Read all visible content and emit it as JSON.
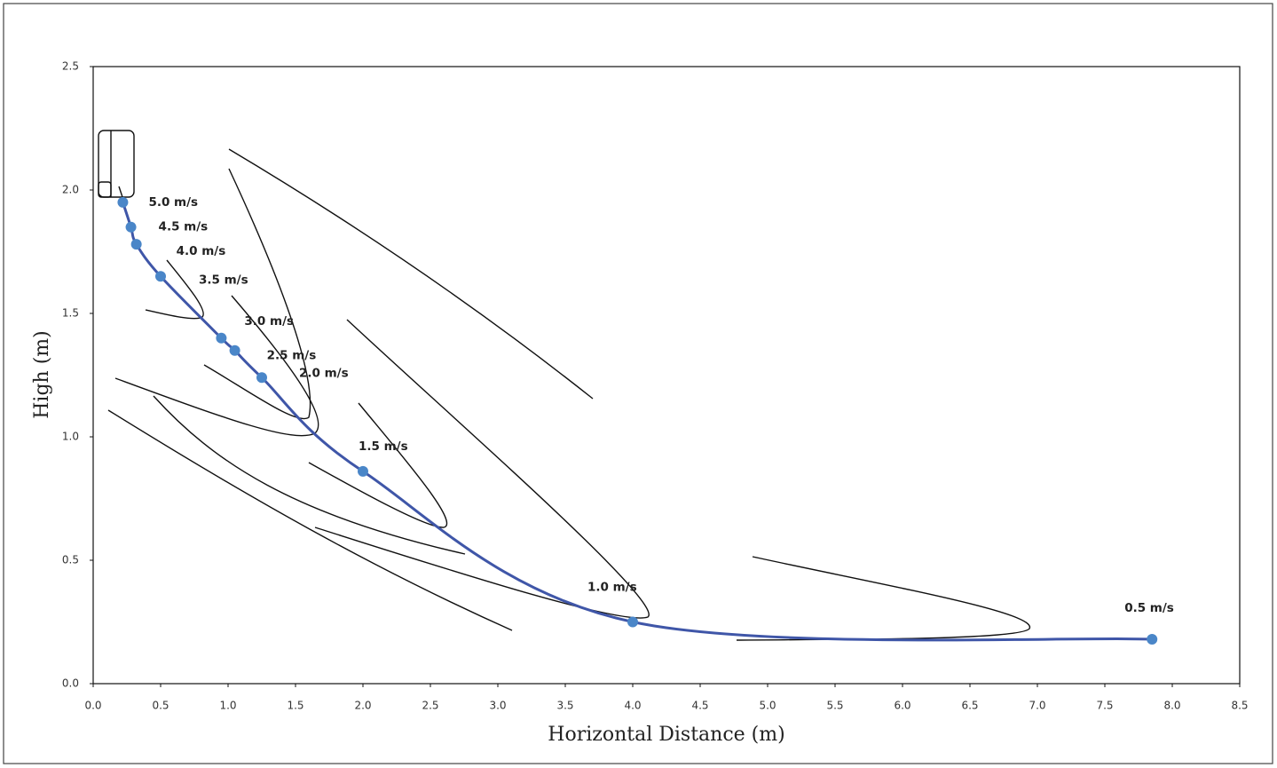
{
  "chart_data": {
    "type": "line",
    "x_label": "Horizontal Distance (m)",
    "y_label": "High (m)",
    "x": [
      0.22,
      0.28,
      0.32,
      0.5,
      0.95,
      1.05,
      1.25,
      2.0,
      4.0,
      7.85
    ],
    "series": [
      {
        "color": "#3f56a8",
        "marker_color": "#4a86c8",
        "values": [
          1.95,
          1.85,
          1.78,
          1.65,
          1.4,
          1.35,
          1.24,
          0.86,
          0.25,
          0.18
        ],
        "point_labels": [
          "5.0 m/s",
          "4.5 m/s",
          "4.0 m/s",
          "3.5 m/s",
          "3.0 m/s",
          "2.5 m/s",
          "2.0 m/s",
          "1.5 m/s",
          "1.0 m/s",
          "0.5 m/s"
        ]
      }
    ],
    "xlim": [
      0,
      8.5
    ],
    "xticks": [
      {
        "value": 0,
        "label": "0.0"
      },
      0.5,
      {
        "value": 1,
        "label": "1.0"
      },
      1.5,
      {
        "value": 2,
        "label": "2.0"
      },
      2.5,
      {
        "value": 3,
        "label": "3.0"
      },
      3.5,
      {
        "value": 4,
        "label": "4.0"
      },
      4.5,
      {
        "value": 5,
        "label": "5.0"
      },
      5.5,
      {
        "value": 6,
        "label": "6.0"
      },
      6.5,
      {
        "value": 7,
        "label": "7.0"
      },
      7.5,
      {
        "value": 8,
        "label": "8.0"
      },
      8.5
    ],
    "ylim": [
      0,
      2.5
    ],
    "yticks": [
      {
        "value": 0,
        "label": "0.0"
      },
      0.5,
      {
        "value": 1,
        "label": "1.0"
      },
      1.5,
      {
        "value": 2,
        "label": "2.0"
      },
      2.5
    ],
    "grid": false
  }
}
